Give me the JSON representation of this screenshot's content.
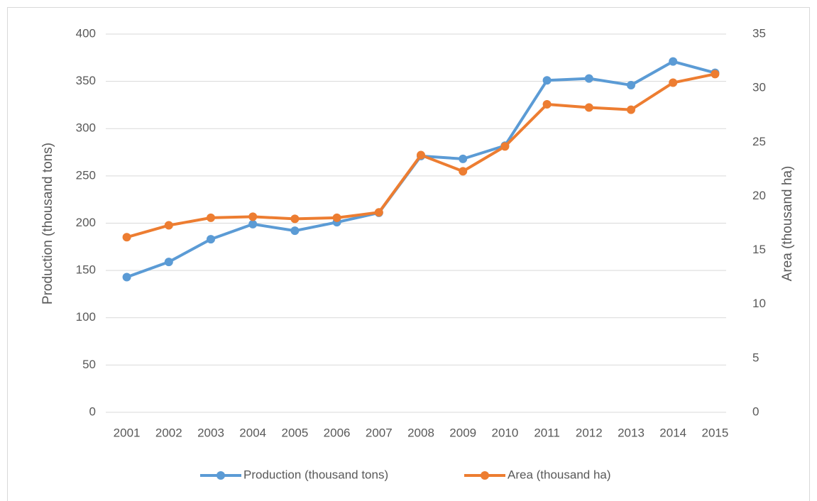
{
  "chart_data": {
    "type": "line",
    "categories": [
      "2001",
      "2002",
      "2003",
      "2004",
      "2005",
      "2006",
      "2007",
      "2008",
      "2009",
      "2010",
      "2011",
      "2012",
      "2013",
      "2014",
      "2015"
    ],
    "series": [
      {
        "name": "Production (thousand tons)",
        "color": "#5b9bd5",
        "axis": "y",
        "values": [
          143,
          159,
          183,
          199,
          192,
          201,
          211,
          271,
          268,
          282,
          351,
          353,
          346,
          371,
          359
        ]
      },
      {
        "name": "Area (thousand ha)",
        "color": "#ed7d31",
        "axis": "y2",
        "values": [
          16.2,
          17.3,
          18.0,
          18.1,
          17.9,
          18.0,
          18.5,
          23.8,
          22.3,
          24.6,
          28.5,
          28.2,
          28.0,
          30.5,
          31.3
        ]
      }
    ],
    "ylabel": "Production (thousand tons)",
    "y2label": "Area (thousand ha)",
    "ylim": [
      0,
      400
    ],
    "yticks": [
      0,
      50,
      100,
      150,
      200,
      250,
      300,
      350,
      400
    ],
    "y2lim": [
      0,
      35
    ],
    "y2ticks": [
      0,
      5,
      10,
      15,
      20,
      25,
      30,
      35
    ],
    "grid": true,
    "legend": "bottom"
  }
}
